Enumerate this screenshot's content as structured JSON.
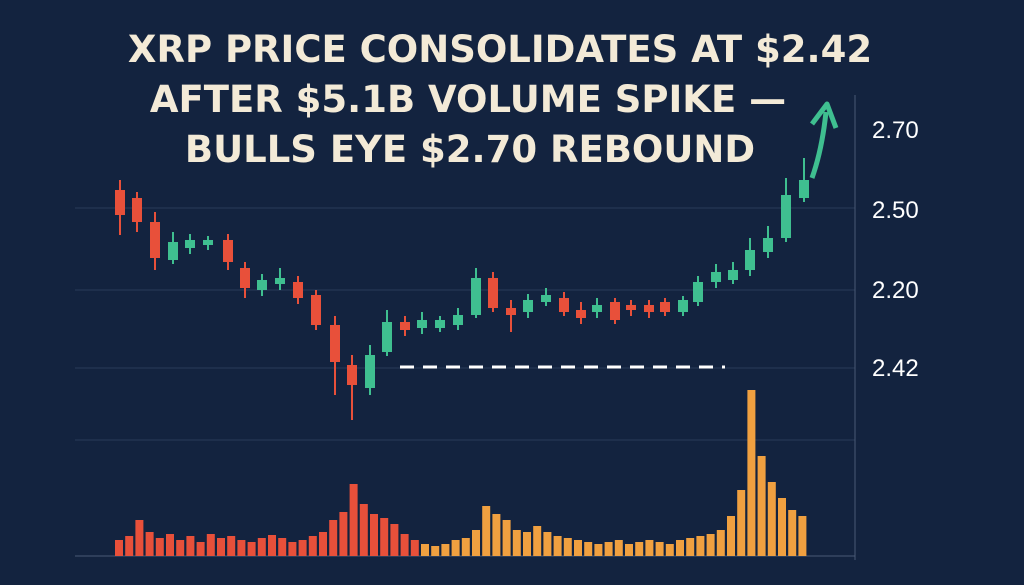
{
  "header": {
    "title_lines": [
      "XRP PRICE CONSOLIDATES AT $2.42",
      "AFTER $5.1B VOLUME SPIKE —",
      "BULLS EYE $2.70 REBOUND"
    ]
  },
  "axis": {
    "labels": [
      "2.70",
      "2.50",
      "2.20",
      "2.42"
    ]
  }
}
